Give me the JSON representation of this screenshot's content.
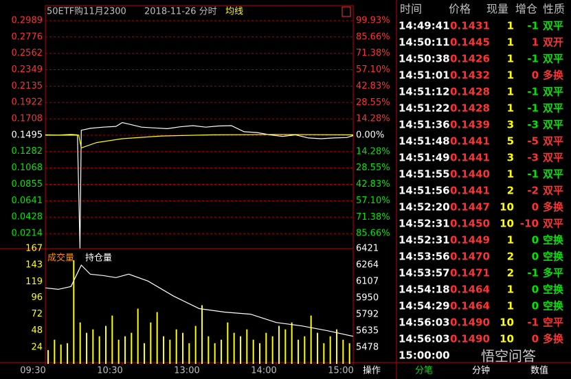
{
  "chart_data": [
    {
      "type": "line",
      "title": "50ETF购11月2300",
      "subtitle": "2018-11-26 分时",
      "xlim": [
        0,
        240
      ],
      "ylim": [
        0,
        0.2989
      ],
      "y2lim": [
        -99.93,
        99.93
      ],
      "grid": true,
      "yticks": [
        0.2989,
        0.2776,
        0.2562,
        0.2349,
        0.2135,
        0.1922,
        0.1708,
        0.1495,
        0.1282,
        0.1068,
        0.0855,
        0.0641,
        0.0428,
        0.0214
      ],
      "y2ticks": [
        {
          "value": 99.93,
          "label": "99.93%"
        },
        {
          "value": 85.66,
          "label": "85.66%"
        },
        {
          "value": 71.38,
          "label": "71.38%"
        },
        {
          "value": 57.1,
          "label": "57.10%"
        },
        {
          "value": 42.83,
          "label": "42.83%"
        },
        {
          "value": 28.55,
          "label": "28.55%"
        },
        {
          "value": 14.28,
          "label": "14.28%"
        },
        {
          "value": 0,
          "label": "0.00%"
        },
        {
          "value": -14.28,
          "label": "14.28%"
        },
        {
          "value": -28.55,
          "label": "28.55%"
        },
        {
          "value": -42.83,
          "label": "42.83%"
        },
        {
          "value": -57.1,
          "label": "57.10%"
        },
        {
          "value": -71.38,
          "label": "71.38%"
        },
        {
          "value": -85.66,
          "label": "85.66%"
        }
      ],
      "series": [
        {
          "color": "#ffffff",
          "x": [
            0,
            10,
            20,
            25,
            27,
            28,
            35,
            45,
            55,
            60,
            65,
            75,
            85,
            95,
            105,
            115,
            125,
            135,
            145,
            155,
            165,
            175,
            185,
            195,
            205,
            215,
            225,
            235,
            240
          ],
          "values": [
            0.15,
            0.1497,
            0.1505,
            0.15,
            0.002,
            0.156,
            0.1585,
            0.16,
            0.161,
            0.166,
            0.164,
            0.16,
            0.159,
            0.158,
            0.1605,
            0.162,
            0.16,
            0.1615,
            0.162,
            0.154,
            0.153,
            0.15,
            0.148,
            0.15,
            0.146,
            0.145,
            0.146,
            0.1465,
            0.149
          ]
        },
        {
          "name": "均线",
          "color": "#ffff00",
          "x": [
            0,
            26,
            28,
            40,
            60,
            90,
            130,
            180,
            240
          ],
          "values": [
            0.1495,
            0.1495,
            0.133,
            0.14,
            0.145,
            0.1485,
            0.15,
            0.1505,
            0.15
          ]
        }
      ]
    },
    {
      "type": "bar",
      "xlim": [
        0,
        240
      ],
      "ylim": [
        0,
        167
      ],
      "y2lim": [
        5321,
        6421
      ],
      "yticks": [
        167,
        143,
        119,
        96,
        72,
        48,
        24
      ],
      "y2ticks": [
        6421,
        6264,
        6107,
        5950,
        5792,
        5635,
        5478
      ],
      "xticks": [
        {
          "value": 0,
          "label": "09:30"
        },
        {
          "value": 60,
          "label": "10:30"
        },
        {
          "value": 120,
          "label": "13:00"
        },
        {
          "value": 180,
          "label": "14:00"
        },
        {
          "value": 240,
          "label": "15:00"
        }
      ],
      "series": [
        {
          "name": "成交量",
          "color": "#ffff00",
          "x": [
            0,
            5,
            10,
            15,
            20,
            25,
            30,
            35,
            40,
            45,
            50,
            55,
            60,
            65,
            70,
            75,
            80,
            85,
            90,
            95,
            100,
            105,
            110,
            115,
            120,
            125,
            130,
            135,
            140,
            145,
            150,
            155,
            160,
            165,
            170,
            175,
            180,
            185,
            190,
            195,
            200,
            205,
            210,
            215,
            220,
            225,
            230,
            235
          ],
          "values": [
            20,
            35,
            28,
            30,
            150,
            60,
            45,
            50,
            40,
            55,
            70,
            35,
            40,
            45,
            80,
            30,
            60,
            75,
            40,
            35,
            50,
            45,
            30,
            55,
            85,
            40,
            30,
            35,
            60,
            45,
            40,
            50,
            35,
            30,
            45,
            40,
            55,
            50,
            60,
            35,
            40,
            70,
            45,
            30,
            40,
            50,
            35,
            30
          ]
        },
        {
          "name": "持仓量",
          "color": "#ffffff",
          "axis": "y2",
          "x": [
            0,
            10,
            20,
            28,
            35,
            45,
            55,
            65,
            80,
            100,
            120,
            140,
            160,
            180,
            200,
            220,
            240
          ],
          "values": [
            6046,
            6032,
            6059,
            6263,
            6177,
            6164,
            6144,
            6177,
            6111,
            5967,
            5848,
            5815,
            5795,
            5716,
            5683,
            5637,
            5584
          ]
        }
      ]
    }
  ],
  "table": {
    "header": [
      "时间",
      "价格",
      "现量",
      "增仓",
      "性质"
    ],
    "rows": [
      {
        "cells": [
          "14:49:41",
          "0.1431",
          "1",
          "-1",
          "双平"
        ],
        "color": "#00e600"
      },
      {
        "cells": [
          "14:50:11",
          "0.1445",
          "1",
          "1",
          "双开"
        ],
        "color": "#ff3232"
      },
      {
        "cells": [
          "14:50:38",
          "0.1426",
          "1",
          "-1",
          "双平"
        ],
        "color": "#00e600"
      },
      {
        "cells": [
          "14:51:01",
          "0.1432",
          "1",
          "0",
          "多换"
        ],
        "color": "#ff3232"
      },
      {
        "cells": [
          "14:51:12",
          "0.1428",
          "1",
          "-1",
          "双平"
        ],
        "color": "#00e600"
      },
      {
        "cells": [
          "14:51:22",
          "0.1428",
          "1",
          "-1",
          "双平"
        ],
        "color": "#00e600"
      },
      {
        "cells": [
          "14:51:36",
          "0.1439",
          "3",
          "-3",
          "双平"
        ],
        "color": "#00e600"
      },
      {
        "cells": [
          "14:51:48",
          "0.1441",
          "5",
          "-5",
          "双平"
        ],
        "color": "#ff3232"
      },
      {
        "cells": [
          "14:51:49",
          "0.1441",
          "3",
          "-3",
          "双平"
        ],
        "color": "#ff3232"
      },
      {
        "cells": [
          "14:51:55",
          "0.1440",
          "1",
          "-1",
          "双平"
        ],
        "color": "#00e600"
      },
      {
        "cells": [
          "14:51:56",
          "0.1441",
          "2",
          "-2",
          "双平"
        ],
        "color": "#ff3232"
      },
      {
        "cells": [
          "14:52:20",
          "0.1447",
          "10",
          "0",
          "多换"
        ],
        "color": "#ff3232"
      },
      {
        "cells": [
          "14:52:31",
          "0.1450",
          "10",
          "-10",
          "双平"
        ],
        "color": "#ff3232"
      },
      {
        "cells": [
          "14:52:31",
          "0.1449",
          "1",
          "0",
          "空换"
        ],
        "color": "#00e600"
      },
      {
        "cells": [
          "14:53:56",
          "0.1470",
          "2",
          "0",
          "空换"
        ],
        "color": "#00e600"
      },
      {
        "cells": [
          "14:53:57",
          "0.1471",
          "2",
          "-1",
          "多平"
        ],
        "color": "#00e600"
      },
      {
        "cells": [
          "14:54:18",
          "0.1464",
          "1",
          "0",
          "空换"
        ],
        "color": "#00e600"
      },
      {
        "cells": [
          "14:54:29",
          "0.1464",
          "1",
          "0",
          "空换"
        ],
        "color": "#00e600"
      },
      {
        "cells": [
          "14:56:03",
          "0.1490",
          "10",
          "-1",
          "空平"
        ],
        "color": "#ff3232"
      },
      {
        "cells": [
          "14:56:03",
          "0.1490",
          "10",
          "0",
          "多换"
        ],
        "color": "#ff3232"
      },
      {
        "cells": [
          "15:00:00"
        ],
        "color": "#ffffff"
      }
    ]
  },
  "tabs": [
    "操作",
    "分笔",
    "分钟",
    "数值"
  ],
  "watermark": "悟空问答"
}
